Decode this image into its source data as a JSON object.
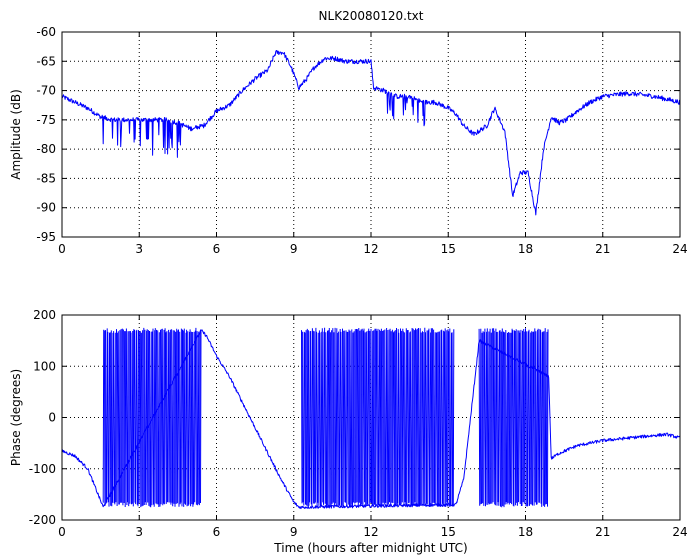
{
  "figure": {
    "title": "NLK20080120.txt",
    "xlabel": "Time (hours after midnight UTC)"
  },
  "chart_data": [
    {
      "type": "line",
      "title": "NLK20080120.txt",
      "xlabel": "",
      "ylabel": "Amplitude (dB)",
      "xlim": [
        0,
        24
      ],
      "ylim": [
        -95,
        -60
      ],
      "xticks": [
        0,
        3,
        6,
        9,
        12,
        15,
        18,
        21,
        24
      ],
      "yticks": [
        -95,
        -90,
        -85,
        -80,
        -75,
        -70,
        -65,
        -60
      ],
      "grid": true,
      "color": "#0000ff",
      "series": [
        {
          "x": [
            0,
            0.5,
            1,
            1.5,
            2,
            2.5,
            3,
            3.5,
            4,
            4.5,
            5,
            5.5,
            6,
            6.5,
            7,
            7.5,
            8,
            8.3,
            8.6,
            8.9,
            9.2,
            9.5,
            9.8,
            10.2,
            10.6,
            11,
            11.5,
            12,
            12.1,
            12.5,
            13,
            13.5,
            14,
            14.5,
            15,
            15.3,
            15.6,
            16,
            16.5,
            16.8,
            17.2,
            17.5,
            17.8,
            18.1,
            18.4,
            18.7,
            19,
            19.3,
            19.6,
            20,
            20.5,
            21,
            21.5,
            22,
            22.5,
            23,
            23.5,
            24
          ],
          "y": [
            -71,
            -72,
            -73,
            -74.5,
            -75,
            -75,
            -75,
            -75,
            -75,
            -75.5,
            -76.5,
            -76,
            -73.5,
            -72.5,
            -70,
            -68,
            -66.5,
            -63.5,
            -63.5,
            -66,
            -69.5,
            -68,
            -66,
            -64.5,
            -64.5,
            -65,
            -65,
            -65,
            -69.5,
            -70,
            -71,
            -71,
            -72,
            -72,
            -73,
            -74,
            -76,
            -77.5,
            -76,
            -73,
            -77,
            -88,
            -84,
            -84,
            -91,
            -80,
            -74.5,
            -75.5,
            -75,
            -73.5,
            -72,
            -71,
            -70.7,
            -70.5,
            -70.7,
            -71,
            -71.5,
            -72
          ]
        }
      ]
    },
    {
      "type": "line",
      "title": "",
      "xlabel": "Time (hours after midnight UTC)",
      "ylabel": "Phase (degrees)",
      "xlim": [
        0,
        24
      ],
      "ylim": [
        -200,
        200
      ],
      "xticks": [
        0,
        3,
        6,
        9,
        12,
        15,
        18,
        21,
        24
      ],
      "yticks": [
        -200,
        -100,
        0,
        100,
        200
      ],
      "grid": true,
      "color": "#0000ff",
      "series": [
        {
          "x": [
            0,
            0.5,
            1,
            1.4,
            1.6,
            5.4,
            5.6,
            6,
            6.5,
            7,
            7.5,
            8,
            8.5,
            9,
            9.2,
            15.3,
            15.6,
            16,
            16.2,
            18.9,
            19,
            19.3,
            20,
            21,
            22,
            23,
            23.5,
            24
          ],
          "y": [
            -65,
            -75,
            -100,
            -150,
            -175,
            170,
            160,
            120,
            80,
            30,
            -20,
            -70,
            -120,
            -165,
            -175,
            -170,
            -120,
            60,
            150,
            80,
            -80,
            -70,
            -55,
            -45,
            -40,
            -35,
            -33,
            -40
          ],
          "wraps": [
            {
              "from": 1.6,
              "to": 5.4,
              "center": 0
            },
            {
              "from": 9.3,
              "to": 15.2,
              "center": -170
            },
            {
              "from": 16.2,
              "to": 18.9,
              "center": 100
            }
          ]
        }
      ]
    }
  ]
}
